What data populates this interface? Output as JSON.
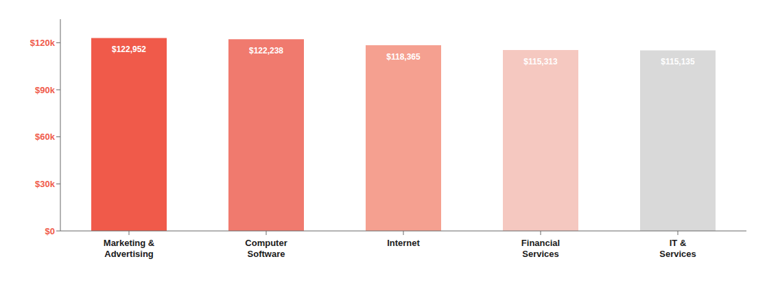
{
  "chart_data": {
    "type": "bar",
    "categories": [
      "Marketing &\nAdvertising",
      "Computer\nSoftware",
      "Internet",
      "Financial\nServices",
      "IT &\nServices"
    ],
    "values": [
      122952,
      122238,
      118365,
      115313,
      115135
    ],
    "value_labels": [
      "$122,952",
      "$122,238",
      "$118,365",
      "$115,313",
      "$115,135"
    ],
    "data_labels": true,
    "colors": [
      "#f05a4a",
      "#f07a6e",
      "#f5a090",
      "#f5c8c0",
      "#d9d9d9"
    ],
    "ylim": [
      0,
      135000
    ],
    "yticks": [
      {
        "value": 0,
        "label": "$0"
      },
      {
        "value": 30000,
        "label": "$30k"
      },
      {
        "value": 60000,
        "label": "$60k"
      },
      {
        "value": 90000,
        "label": "$90k"
      },
      {
        "value": 120000,
        "label": "$120k"
      }
    ],
    "grid": false
  }
}
